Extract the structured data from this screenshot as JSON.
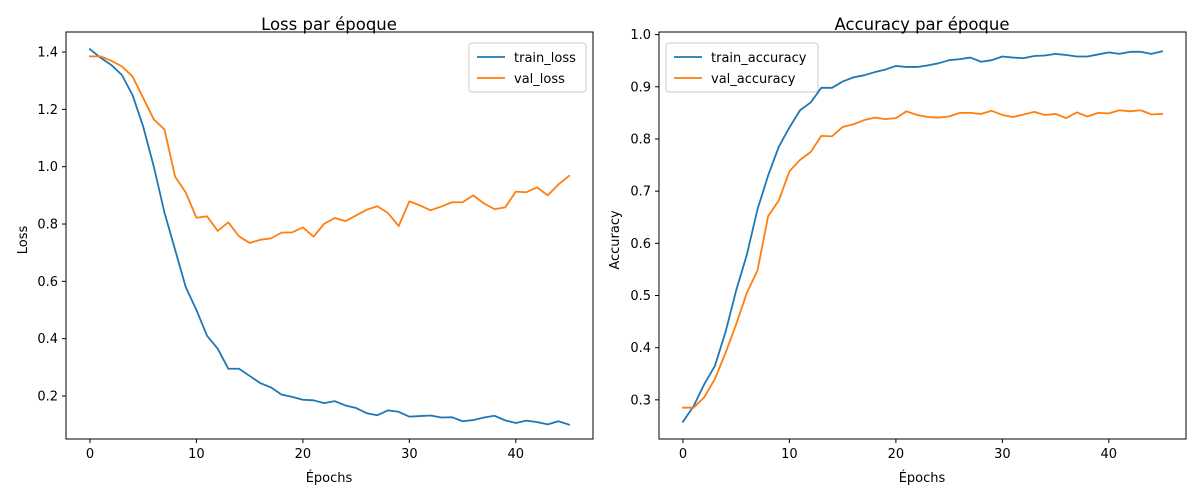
{
  "chart_data": [
    {
      "type": "line",
      "title": "Loss par époque",
      "xlabel": "Épochs",
      "ylabel": "Loss",
      "xlim": [
        -2.25,
        47.25
      ],
      "ylim": [
        0.05,
        1.47
      ],
      "xticks": [
        0,
        10,
        20,
        30,
        40
      ],
      "yticks": [
        0.2,
        0.4,
        0.6,
        0.8,
        1.0,
        1.2,
        1.4
      ],
      "ytick_labels": [
        "0.2",
        "0.4",
        "0.6",
        "0.8",
        "1.0",
        "1.2",
        "1.4"
      ],
      "grid": false,
      "legend_position": "top-right",
      "series": [
        {
          "name": "train_loss",
          "color": "#1f77b4",
          "x": [
            0,
            1,
            2,
            3,
            4,
            5,
            6,
            7,
            8,
            9,
            10,
            11,
            12,
            13,
            14,
            15,
            16,
            17,
            18,
            19,
            20,
            21,
            22,
            23,
            24,
            25,
            26,
            27,
            28,
            29,
            30,
            31,
            32,
            33,
            34,
            35,
            36,
            37,
            38,
            39,
            40,
            41,
            42,
            43,
            44,
            45
          ],
          "values": [
            1.41,
            1.38,
            1.355,
            1.32,
            1.25,
            1.14,
            1.0,
            0.84,
            0.71,
            0.58,
            0.5,
            0.41,
            0.365,
            0.295,
            0.295,
            0.27,
            0.245,
            0.23,
            0.205,
            0.197,
            0.187,
            0.185,
            0.175,
            0.182,
            0.167,
            0.158,
            0.14,
            0.133,
            0.15,
            0.145,
            0.128,
            0.13,
            0.132,
            0.125,
            0.126,
            0.112,
            0.116,
            0.125,
            0.131,
            0.115,
            0.106,
            0.114,
            0.109,
            0.101,
            0.112,
            0.1
          ]
        },
        {
          "name": "val_loss",
          "color": "#ff7f0e",
          "x": [
            0,
            1,
            2,
            3,
            4,
            5,
            6,
            7,
            8,
            9,
            10,
            11,
            12,
            13,
            14,
            15,
            16,
            17,
            18,
            19,
            20,
            21,
            22,
            23,
            24,
            25,
            26,
            27,
            28,
            29,
            30,
            31,
            32,
            33,
            34,
            35,
            36,
            37,
            38,
            39,
            40,
            41,
            42,
            43,
            44,
            45
          ],
          "values": [
            1.385,
            1.385,
            1.37,
            1.35,
            1.315,
            1.24,
            1.165,
            1.13,
            0.965,
            0.91,
            0.822,
            0.827,
            0.776,
            0.806,
            0.757,
            0.734,
            0.745,
            0.75,
            0.77,
            0.771,
            0.788,
            0.756,
            0.801,
            0.821,
            0.81,
            0.83,
            0.85,
            0.862,
            0.838,
            0.793,
            0.879,
            0.865,
            0.848,
            0.861,
            0.876,
            0.876,
            0.9,
            0.872,
            0.852,
            0.858,
            0.913,
            0.911,
            0.928,
            0.9,
            0.938,
            0.968
          ]
        }
      ]
    },
    {
      "type": "line",
      "title": "Accuracy par époque",
      "xlabel": "Épochs",
      "ylabel": "Accuracy",
      "xlim": [
        -2.25,
        47.25
      ],
      "ylim": [
        0.225,
        1.005
      ],
      "xticks": [
        0,
        10,
        20,
        30,
        40
      ],
      "yticks": [
        0.3,
        0.4,
        0.5,
        0.6,
        0.7,
        0.8,
        0.9,
        1.0
      ],
      "ytick_labels": [
        "0.3",
        "0.4",
        "0.5",
        "0.6",
        "0.7",
        "0.8",
        "0.9",
        "1.0"
      ],
      "grid": false,
      "legend_position": "top-left",
      "series": [
        {
          "name": "train_accuracy",
          "color": "#1f77b4",
          "x": [
            0,
            1,
            2,
            3,
            4,
            5,
            6,
            7,
            8,
            9,
            10,
            11,
            12,
            13,
            14,
            15,
            16,
            17,
            18,
            19,
            20,
            21,
            22,
            23,
            24,
            25,
            26,
            27,
            28,
            29,
            30,
            31,
            32,
            33,
            34,
            35,
            36,
            37,
            38,
            39,
            40,
            41,
            42,
            43,
            44,
            45
          ],
          "values": [
            0.258,
            0.288,
            0.33,
            0.365,
            0.43,
            0.51,
            0.578,
            0.665,
            0.73,
            0.785,
            0.822,
            0.855,
            0.87,
            0.898,
            0.898,
            0.91,
            0.918,
            0.922,
            0.928,
            0.933,
            0.94,
            0.938,
            0.938,
            0.941,
            0.945,
            0.951,
            0.953,
            0.956,
            0.948,
            0.951,
            0.958,
            0.956,
            0.955,
            0.959,
            0.96,
            0.963,
            0.961,
            0.958,
            0.958,
            0.962,
            0.966,
            0.963,
            0.967,
            0.967,
            0.963,
            0.968
          ]
        },
        {
          "name": "val_accuracy",
          "color": "#ff7f0e",
          "x": [
            0,
            1,
            2,
            3,
            4,
            5,
            6,
            7,
            8,
            9,
            10,
            11,
            12,
            13,
            14,
            15,
            16,
            17,
            18,
            19,
            20,
            21,
            22,
            23,
            24,
            25,
            26,
            27,
            28,
            29,
            30,
            31,
            32,
            33,
            34,
            35,
            36,
            37,
            38,
            39,
            40,
            41,
            42,
            43,
            44,
            45
          ],
          "values": [
            0.285,
            0.285,
            0.305,
            0.34,
            0.39,
            0.445,
            0.505,
            0.548,
            0.652,
            0.682,
            0.738,
            0.76,
            0.775,
            0.806,
            0.805,
            0.823,
            0.828,
            0.836,
            0.841,
            0.838,
            0.84,
            0.853,
            0.846,
            0.842,
            0.841,
            0.843,
            0.85,
            0.85,
            0.848,
            0.854,
            0.846,
            0.842,
            0.847,
            0.852,
            0.846,
            0.848,
            0.84,
            0.851,
            0.843,
            0.85,
            0.849,
            0.855,
            0.853,
            0.855,
            0.847,
            0.848
          ]
        }
      ]
    }
  ]
}
